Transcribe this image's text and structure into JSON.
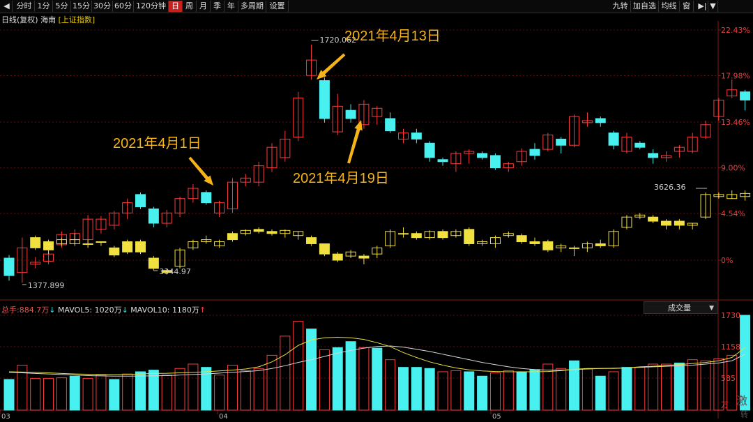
{
  "toolbar": {
    "items": [
      {
        "label": "分时",
        "w": 30
      },
      {
        "label": "1分",
        "w": 26
      },
      {
        "label": "5分",
        "w": 26
      },
      {
        "label": "15分",
        "w": 30
      },
      {
        "label": "30分",
        "w": 30
      },
      {
        "label": "60分",
        "w": 30
      },
      {
        "label": "120分钟",
        "w": 50
      },
      {
        "label": "日",
        "w": 20,
        "active": true
      },
      {
        "label": "周",
        "w": 20
      },
      {
        "label": "月",
        "w": 20
      },
      {
        "label": "季",
        "w": 20
      },
      {
        "label": "年",
        "w": 20
      },
      {
        "label": "多周期",
        "w": 40
      },
      {
        "label": "设置",
        "w": 32
      }
    ],
    "right_items": [
      {
        "label": "九转",
        "w": 30
      },
      {
        "label": "加自选",
        "w": 40
      },
      {
        "label": "均线",
        "w": 30
      },
      {
        "label": "窗",
        "w": 20
      }
    ]
  },
  "info": {
    "period": "日线(复权)",
    "name": "海南",
    "index": "[上证指数]"
  },
  "volume_info": {
    "total_label": "总手:",
    "total_value": "884.7万",
    "mavol5_label": "MAVOL5:",
    "mavol5_value": "1020万",
    "mavol10_label": "MAVOL10:",
    "mavol10_value": "1180万"
  },
  "volume_dropdown": "成交量",
  "watermark": {
    "line1": "激",
    "line2": "转"
  },
  "chart_data": {
    "type": "candlestick",
    "x_dates": [
      "03",
      "04",
      "05"
    ],
    "y_axis_pct": [
      "22.43%",
      "17.98%",
      "13.46%",
      "9.00%",
      "4.54%",
      "0%"
    ],
    "volume_axis": [
      "1730",
      "1158",
      "585",
      "万"
    ],
    "annotations": [
      "2021年4月1日",
      "2021年4月13日",
      "2021年4月19日"
    ],
    "price_labels": {
      "high": "1720.062",
      "low": "1377.899",
      "index_low": "3344.97",
      "index_last": "3626.36"
    },
    "series_hainan": [
      {
        "o": 0.2,
        "c": -1.5,
        "h": 0.5,
        "l": -2.0
      },
      {
        "o": -1.2,
        "c": 1.2,
        "h": 2.2,
        "l": -2.2
      },
      {
        "o": -0.4,
        "c": -0.2,
        "h": 0.3,
        "l": -0.8
      },
      {
        "o": -0.1,
        "c": 0.6,
        "h": 1.0,
        "l": -0.4
      },
      {
        "o": 1.5,
        "c": 2.5,
        "h": 2.8,
        "l": 1.2
      },
      {
        "o": 2.0,
        "c": 2.6,
        "h": 3.0,
        "l": 1.6
      },
      {
        "o": 2.0,
        "c": 4.0,
        "h": 4.4,
        "l": 1.5
      },
      {
        "o": 3.0,
        "c": 4.0,
        "h": 4.3,
        "l": 2.6
      },
      {
        "o": 3.4,
        "c": 4.6,
        "h": 4.8,
        "l": 3.0
      },
      {
        "o": 4.6,
        "c": 5.6,
        "h": 6.0,
        "l": 4.0
      },
      {
        "o": 6.4,
        "c": 5.2,
        "h": 6.6,
        "l": 5.0
      },
      {
        "o": 5.0,
        "c": 3.6,
        "h": 5.2,
        "l": 3.2
      },
      {
        "o": 3.6,
        "c": 4.6,
        "h": 4.9,
        "l": 3.2
      },
      {
        "o": 4.6,
        "c": 6.0,
        "h": 6.2,
        "l": 4.2
      },
      {
        "o": 6.0,
        "c": 7.0,
        "h": 7.4,
        "l": 5.6
      },
      {
        "o": 6.6,
        "c": 5.6,
        "h": 6.8,
        "l": 5.4
      },
      {
        "o": 4.6,
        "c": 5.6,
        "h": 5.8,
        "l": 4.2
      },
      {
        "o": 5.0,
        "c": 7.6,
        "h": 8.0,
        "l": 4.6
      },
      {
        "o": 7.6,
        "c": 8.0,
        "h": 8.4,
        "l": 7.2
      },
      {
        "o": 7.6,
        "c": 9.2,
        "h": 9.6,
        "l": 7.2
      },
      {
        "o": 9.0,
        "c": 11.0,
        "h": 11.4,
        "l": 8.6
      },
      {
        "o": 10.0,
        "c": 11.8,
        "h": 12.6,
        "l": 9.6
      },
      {
        "o": 12.0,
        "c": 15.8,
        "h": 16.4,
        "l": 11.6
      },
      {
        "o": 18.0,
        "c": 19.5,
        "h": 21.0,
        "l": 17.6
      },
      {
        "o": 17.5,
        "c": 13.8,
        "h": 17.8,
        "l": 13.4
      },
      {
        "o": 12.5,
        "c": 15.0,
        "h": 16.2,
        "l": 12.2
      },
      {
        "o": 14.6,
        "c": 13.8,
        "h": 15.2,
        "l": 13.4
      },
      {
        "o": 13.2,
        "c": 15.2,
        "h": 15.6,
        "l": 12.8
      },
      {
        "o": 14.0,
        "c": 14.8,
        "h": 15.0,
        "l": 13.2
      },
      {
        "o": 13.8,
        "c": 12.6,
        "h": 14.4,
        "l": 12.4
      },
      {
        "o": 11.8,
        "c": 12.4,
        "h": 12.8,
        "l": 11.4
      },
      {
        "o": 12.4,
        "c": 11.8,
        "h": 12.8,
        "l": 11.4
      },
      {
        "o": 11.4,
        "c": 10.0,
        "h": 11.6,
        "l": 9.6
      },
      {
        "o": 9.8,
        "c": 9.6,
        "h": 10.0,
        "l": 9.2
      },
      {
        "o": 9.4,
        "c": 10.4,
        "h": 10.6,
        "l": 8.6
      },
      {
        "o": 10.4,
        "c": 10.6,
        "h": 10.8,
        "l": 9.4
      },
      {
        "o": 10.4,
        "c": 10.0,
        "h": 10.6,
        "l": 9.8
      },
      {
        "o": 10.2,
        "c": 9.0,
        "h": 10.4,
        "l": 8.8
      },
      {
        "o": 9.0,
        "c": 9.4,
        "h": 9.6,
        "l": 8.6
      },
      {
        "o": 9.6,
        "c": 10.6,
        "h": 10.9,
        "l": 9.2
      },
      {
        "o": 10.8,
        "c": 10.2,
        "h": 11.4,
        "l": 9.8
      },
      {
        "o": 10.8,
        "c": 12.2,
        "h": 12.4,
        "l": 10.6
      },
      {
        "o": 11.8,
        "c": 11.2,
        "h": 12.0,
        "l": 10.4
      },
      {
        "o": 11.2,
        "c": 14.0,
        "h": 14.2,
        "l": 11.0
      },
      {
        "o": 13.4,
        "c": 13.6,
        "h": 14.4,
        "l": 13.0
      },
      {
        "o": 13.8,
        "c": 13.4,
        "h": 14.0,
        "l": 13.0
      },
      {
        "o": 12.4,
        "c": 11.2,
        "h": 12.6,
        "l": 10.8
      },
      {
        "o": 10.6,
        "c": 12.0,
        "h": 12.4,
        "l": 10.4
      },
      {
        "o": 11.4,
        "c": 11.0,
        "h": 11.6,
        "l": 10.8
      },
      {
        "o": 10.4,
        "c": 10.0,
        "h": 10.8,
        "l": 9.4
      },
      {
        "o": 10.0,
        "c": 10.2,
        "h": 10.6,
        "l": 9.6
      },
      {
        "o": 10.6,
        "c": 11.0,
        "h": 11.2,
        "l": 10.0
      },
      {
        "o": 10.6,
        "c": 12.0,
        "h": 12.4,
        "l": 10.4
      },
      {
        "o": 12.0,
        "c": 13.2,
        "h": 13.6,
        "l": 11.8
      },
      {
        "o": 14.0,
        "c": 15.6,
        "h": 15.8,
        "l": 13.6
      },
      {
        "o": 16.0,
        "c": 16.6,
        "h": 17.6,
        "l": 15.8
      },
      {
        "o": 16.4,
        "c": 15.6,
        "h": 16.6,
        "l": 14.6
      }
    ],
    "series_index": [
      {
        "o": 0.0,
        "c": 0.0,
        "h": 0,
        "l": 0
      },
      {
        "o": 0.0,
        "c": 0.0,
        "h": 0,
        "l": 0
      },
      {
        "o": 2.2,
        "c": 1.2,
        "h": 2.4,
        "l": 1.0
      },
      {
        "o": 1.8,
        "c": 1.0,
        "h": 2.0,
        "l": 0.6
      },
      {
        "o": 1.6,
        "c": 2.0,
        "h": 2.2,
        "l": 1.4
      },
      {
        "o": 1.6,
        "c": 2.0,
        "h": 2.6,
        "l": 1.4
      },
      {
        "o": 1.6,
        "c": 1.6,
        "h": 2.0,
        "l": 1.2
      },
      {
        "o": 1.8,
        "c": 1.8,
        "h": 1.8,
        "l": 1.4
      },
      {
        "o": 1.2,
        "c": 0.5,
        "h": 1.4,
        "l": 0.3
      },
      {
        "o": 1.8,
        "c": 0.8,
        "h": 2.0,
        "l": 0.6
      },
      {
        "o": 1.8,
        "c": 0.8,
        "h": 2.0,
        "l": 0.6
      },
      {
        "o": 0.2,
        "c": -0.8,
        "h": 0.4,
        "l": -1.0
      },
      {
        "o": -1.0,
        "c": -1.2,
        "h": -0.8,
        "l": -1.4
      },
      {
        "o": -0.6,
        "c": 1.0,
        "h": 1.2,
        "l": -0.8
      },
      {
        "o": 1.2,
        "c": 1.8,
        "h": 2.0,
        "l": 1.0
      },
      {
        "o": 1.8,
        "c": 2.0,
        "h": 2.4,
        "l": 1.6
      },
      {
        "o": 1.4,
        "c": 1.8,
        "h": 2.0,
        "l": 1.2
      },
      {
        "o": 2.6,
        "c": 2.0,
        "h": 2.8,
        "l": 1.8
      },
      {
        "o": 2.6,
        "c": 2.9,
        "h": 3.0,
        "l": 2.4
      },
      {
        "o": 3.0,
        "c": 2.8,
        "h": 3.2,
        "l": 2.6
      },
      {
        "o": 2.8,
        "c": 2.6,
        "h": 3.0,
        "l": 2.4
      },
      {
        "o": 2.6,
        "c": 2.9,
        "h": 3.0,
        "l": 2.2
      },
      {
        "o": 2.4,
        "c": 2.8,
        "h": 2.8,
        "l": 2.0
      },
      {
        "o": 2.2,
        "c": 1.6,
        "h": 2.4,
        "l": 1.4
      },
      {
        "o": 1.6,
        "c": 0.6,
        "h": 1.6,
        "l": 0.4
      },
      {
        "o": 0.6,
        "c": 0.0,
        "h": 0.8,
        "l": -0.2
      },
      {
        "o": 0.4,
        "c": 0.8,
        "h": 1.0,
        "l": 0.2
      },
      {
        "o": 0.4,
        "c": 0.2,
        "h": 0.6,
        "l": -0.4
      },
      {
        "o": 0.6,
        "c": 1.2,
        "h": 1.4,
        "l": 0.2
      },
      {
        "o": 1.4,
        "c": 2.8,
        "h": 3.0,
        "l": 1.2
      },
      {
        "o": 2.6,
        "c": 2.6,
        "h": 3.2,
        "l": 2.2
      },
      {
        "o": 2.6,
        "c": 2.2,
        "h": 2.8,
        "l": 2.0
      },
      {
        "o": 2.2,
        "c": 2.8,
        "h": 2.9,
        "l": 2.0
      },
      {
        "o": 2.8,
        "c": 2.2,
        "h": 3.0,
        "l": 2.0
      },
      {
        "o": 2.4,
        "c": 2.8,
        "h": 3.0,
        "l": 2.2
      },
      {
        "o": 3.0,
        "c": 1.6,
        "h": 3.2,
        "l": 1.4
      },
      {
        "o": 1.6,
        "c": 1.8,
        "h": 2.0,
        "l": 1.4
      },
      {
        "o": 1.6,
        "c": 2.2,
        "h": 2.4,
        "l": 1.2
      },
      {
        "o": 2.4,
        "c": 2.6,
        "h": 2.8,
        "l": 2.2
      },
      {
        "o": 2.4,
        "c": 1.8,
        "h": 2.6,
        "l": 1.6
      },
      {
        "o": 1.8,
        "c": 1.6,
        "h": 2.2,
        "l": 1.4
      },
      {
        "o": 1.8,
        "c": 1.0,
        "h": 2.0,
        "l": 0.8
      },
      {
        "o": 1.2,
        "c": 1.4,
        "h": 1.6,
        "l": 0.8
      },
      {
        "o": 1.2,
        "c": 1.2,
        "h": 1.4,
        "l": 0.4
      },
      {
        "o": 1.2,
        "c": 1.6,
        "h": 1.8,
        "l": 0.8
      },
      {
        "o": 1.6,
        "c": 1.4,
        "h": 2.0,
        "l": 1.2
      },
      {
        "o": 1.4,
        "c": 2.8,
        "h": 3.0,
        "l": 1.2
      },
      {
        "o": 3.2,
        "c": 4.2,
        "h": 4.4,
        "l": 3.0
      },
      {
        "o": 4.2,
        "c": 4.4,
        "h": 4.6,
        "l": 4.0
      },
      {
        "o": 4.2,
        "c": 3.8,
        "h": 4.4,
        "l": 3.6
      },
      {
        "o": 3.8,
        "c": 3.4,
        "h": 4.0,
        "l": 3.0
      },
      {
        "o": 3.8,
        "c": 3.4,
        "h": 4.0,
        "l": 3.0
      },
      {
        "o": 3.4,
        "c": 3.6,
        "h": 3.6,
        "l": 3.0
      },
      {
        "o": 4.2,
        "c": 6.4,
        "h": 6.6,
        "l": 4.0
      },
      {
        "o": 6.2,
        "c": 6.4,
        "h": 6.6,
        "l": 6.0
      },
      {
        "o": 6.0,
        "c": 6.4,
        "h": 6.8,
        "l": 6.0
      },
      {
        "o": 6.2,
        "c": 6.5,
        "h": 6.8,
        "l": 5.8
      }
    ],
    "volume": [
      {
        "v": 560,
        "d": 1
      },
      {
        "v": 820,
        "d": 0
      },
      {
        "v": 580,
        "d": 0
      },
      {
        "v": 580,
        "d": 0
      },
      {
        "v": 590,
        "d": 0
      },
      {
        "v": 620,
        "d": 1
      },
      {
        "v": 580,
        "d": 0
      },
      {
        "v": 640,
        "d": 0
      },
      {
        "v": 560,
        "d": 1
      },
      {
        "v": 660,
        "d": 0
      },
      {
        "v": 700,
        "d": 1
      },
      {
        "v": 730,
        "d": 1
      },
      {
        "v": 640,
        "d": 0
      },
      {
        "v": 760,
        "d": 0
      },
      {
        "v": 840,
        "d": 0
      },
      {
        "v": 780,
        "d": 1
      },
      {
        "v": 640,
        "d": 0
      },
      {
        "v": 820,
        "d": 0
      },
      {
        "v": 720,
        "d": 0
      },
      {
        "v": 760,
        "d": 0
      },
      {
        "v": 1000,
        "d": 0
      },
      {
        "v": 1350,
        "d": 0
      },
      {
        "v": 1620,
        "d": 0
      },
      {
        "v": 1480,
        "d": 1
      },
      {
        "v": 1100,
        "d": 0
      },
      {
        "v": 1140,
        "d": 1
      },
      {
        "v": 1250,
        "d": 1
      },
      {
        "v": 1140,
        "d": 0
      },
      {
        "v": 1130,
        "d": 1
      },
      {
        "v": 920,
        "d": 0
      },
      {
        "v": 780,
        "d": 1
      },
      {
        "v": 780,
        "d": 1
      },
      {
        "v": 760,
        "d": 1
      },
      {
        "v": 700,
        "d": 0
      },
      {
        "v": 720,
        "d": 0
      },
      {
        "v": 700,
        "d": 1
      },
      {
        "v": 620,
        "d": 1
      },
      {
        "v": 680,
        "d": 0
      },
      {
        "v": 720,
        "d": 0
      },
      {
        "v": 700,
        "d": 1
      },
      {
        "v": 740,
        "d": 1
      },
      {
        "v": 840,
        "d": 0
      },
      {
        "v": 760,
        "d": 0
      },
      {
        "v": 900,
        "d": 1
      },
      {
        "v": 750,
        "d": 0
      },
      {
        "v": 620,
        "d": 1
      },
      {
        "v": 700,
        "d": 0
      },
      {
        "v": 780,
        "d": 1
      },
      {
        "v": 780,
        "d": 0
      },
      {
        "v": 840,
        "d": 0
      },
      {
        "v": 840,
        "d": 0
      },
      {
        "v": 860,
        "d": 1
      },
      {
        "v": 920,
        "d": 0
      },
      {
        "v": 900,
        "d": 0
      },
      {
        "v": 940,
        "d": 0
      },
      {
        "v": 1000,
        "d": 0
      },
      {
        "v": 1730,
        "d": 1
      }
    ],
    "mavol5": [
      700,
      695,
      690,
      680,
      670,
      660,
      655,
      650,
      648,
      652,
      660,
      670,
      672,
      680,
      690,
      700,
      715,
      730,
      750,
      790,
      880,
      1010,
      1180,
      1280,
      1320,
      1330,
      1320,
      1290,
      1230,
      1160,
      1050,
      960,
      880,
      820,
      770,
      735,
      715,
      705,
      700,
      700,
      700,
      705,
      720,
      745,
      760,
      760,
      760,
      770,
      790,
      800,
      815,
      830,
      850,
      870,
      900,
      960,
      1140
    ],
    "mavol10": [
      690,
      680,
      670,
      660,
      650,
      640,
      630,
      625,
      620,
      620,
      622,
      626,
      630,
      640,
      650,
      660,
      675,
      690,
      705,
      720,
      760,
      810,
      870,
      920,
      980,
      1040,
      1090,
      1130,
      1160,
      1170,
      1150,
      1110,
      1070,
      1020,
      970,
      920,
      870,
      830,
      790,
      760,
      740,
      730,
      730,
      740,
      750,
      760,
      765,
      770,
      780,
      790,
      800,
      810,
      820,
      840,
      860,
      900,
      1020
    ]
  }
}
